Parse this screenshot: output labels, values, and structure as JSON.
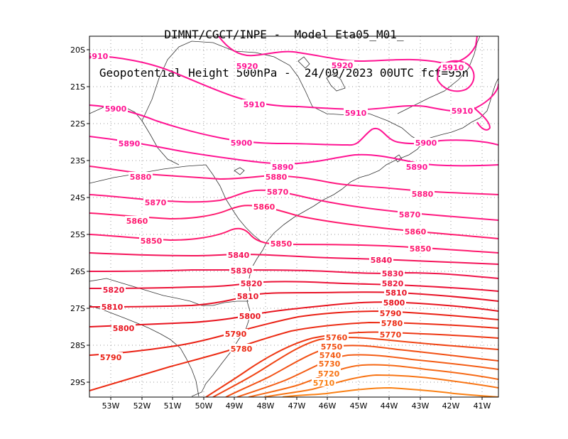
{
  "header": {
    "line1": "DIMNT/CGCT/INPE -  Model Eta05_M01_",
    "line2": "Geopotential Height 500hPa -  24/09/2023 00UTC fct=95h"
  },
  "axes": {
    "lat_labels": [
      "20S",
      "21S",
      "22S",
      "23S",
      "24S",
      "25S",
      "26S",
      "27S",
      "28S",
      "29S"
    ],
    "lon_labels": [
      "53W",
      "52W",
      "51W",
      "50W",
      "49W",
      "48W",
      "47W",
      "46W",
      "45W",
      "44W",
      "43W",
      "42W",
      "41W"
    ]
  },
  "contours": [
    {
      "value": 5920,
      "label": "5920",
      "color": "#ff1493"
    },
    {
      "value": 5910,
      "label": "5910",
      "color": "#ff1493"
    },
    {
      "value": 5900,
      "label": "5900",
      "color": "#ff1493"
    },
    {
      "value": 5890,
      "label": "5890",
      "color": "#ff1493"
    },
    {
      "value": 5880,
      "label": "5880",
      "color": "#ff1a80"
    },
    {
      "value": 5870,
      "label": "5870",
      "color": "#ff1a80"
    },
    {
      "value": 5860,
      "label": "5860",
      "color": "#ff1a6e"
    },
    {
      "value": 5850,
      "label": "5850",
      "color": "#ff1a6e"
    },
    {
      "value": 5840,
      "label": "5840",
      "color": "#f5145a"
    },
    {
      "value": 5830,
      "label": "5830",
      "color": "#f0144a"
    },
    {
      "value": 5820,
      "label": "5820",
      "color": "#ec1438"
    },
    {
      "value": 5810,
      "label": "5810",
      "color": "#e81428"
    },
    {
      "value": 5800,
      "label": "5800",
      "color": "#e8141e"
    },
    {
      "value": 5790,
      "label": "5790",
      "color": "#ea2014"
    },
    {
      "value": 5780,
      "label": "5780",
      "color": "#ec2c14"
    },
    {
      "value": 5770,
      "label": "5770",
      "color": "#ee3814"
    },
    {
      "value": 5760,
      "label": "5760",
      "color": "#f04414"
    },
    {
      "value": 5750,
      "label": "5750",
      "color": "#f25014"
    },
    {
      "value": 5740,
      "label": "5740",
      "color": "#f45c14"
    },
    {
      "value": 5730,
      "label": "5730",
      "color": "#f66814"
    },
    {
      "value": 5720,
      "label": "5720",
      "color": "#f87414"
    },
    {
      "value": 5710,
      "label": "5710",
      "color": "#fa8014"
    }
  ]
}
